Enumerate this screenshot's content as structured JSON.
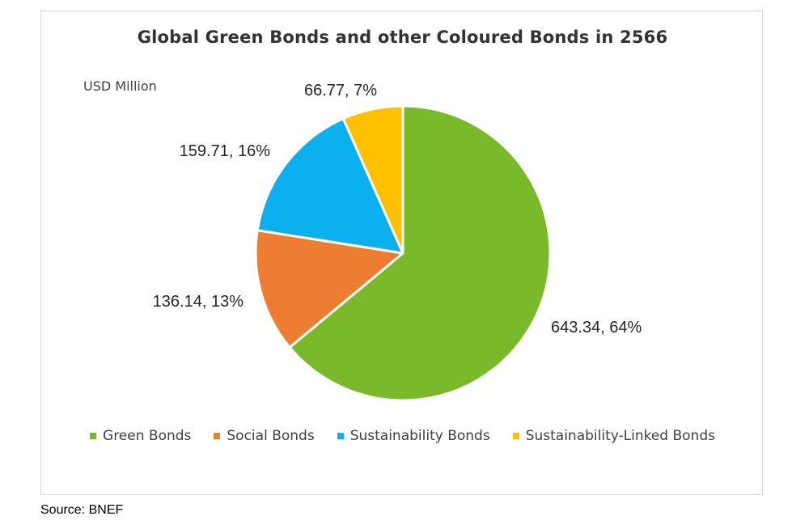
{
  "chart_data": {
    "type": "pie",
    "title": "Global Green Bonds and other Coloured Bonds in 2566",
    "unit_label": "USD Million",
    "legend_position": "bottom",
    "slices": [
      {
        "name": "Green Bonds",
        "value": 643.34,
        "percent": "64%",
        "label": "643.34, 64%",
        "color": "#7ab929"
      },
      {
        "name": "Social Bonds",
        "value": 136.14,
        "percent": "13%",
        "label": "136.14, 13%",
        "color": "#ed7d31"
      },
      {
        "name": "Sustainability Bonds",
        "value": 159.71,
        "percent": "16%",
        "label": "159.71, 16%",
        "color": "#0db0ee"
      },
      {
        "name": "Sustainability-Linked Bonds",
        "value": 66.77,
        "percent": "7%",
        "label": "66.77, 7%",
        "color": "#ffc000"
      }
    ]
  },
  "source": "Source:  BNEF"
}
